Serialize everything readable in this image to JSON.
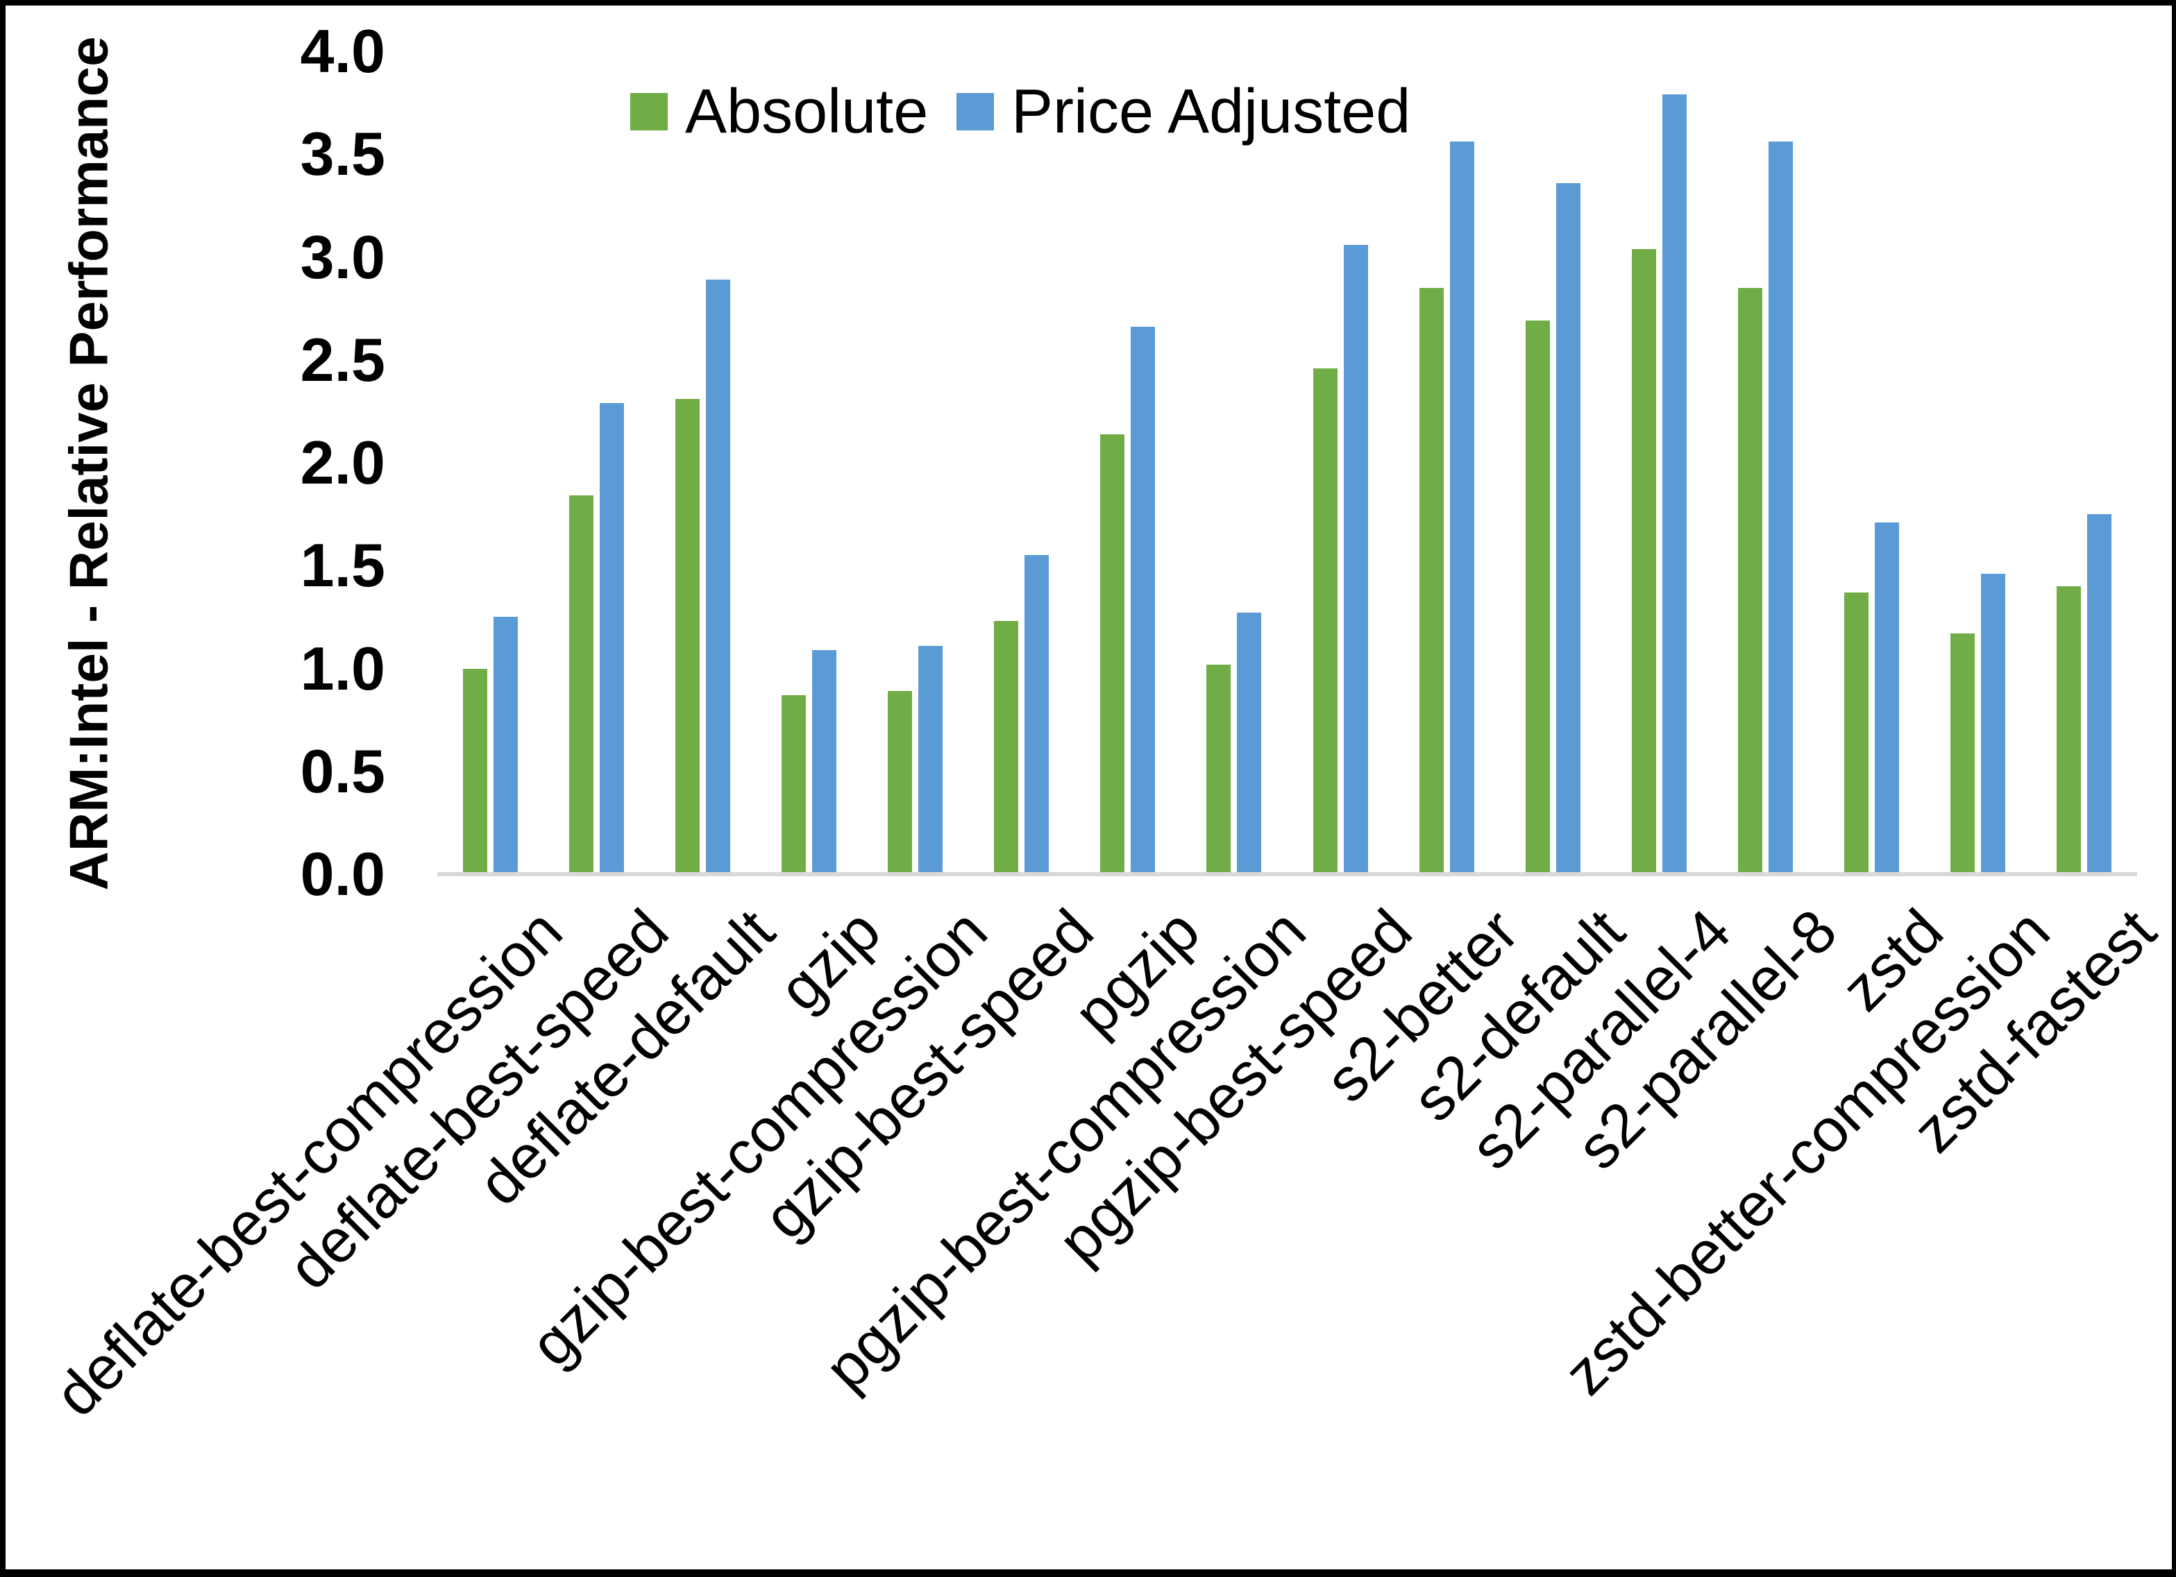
{
  "chart_data": {
    "type": "bar",
    "title": "",
    "xlabel": "",
    "ylabel": "ARM:Intel - Relative Performance",
    "ylim": [
      0.0,
      4.0
    ],
    "ytick_step": 0.5,
    "ytick_labels": [
      "0.0",
      "0.5",
      "1.0",
      "1.5",
      "2.0",
      "2.5",
      "3.0",
      "3.5",
      "4.0"
    ],
    "grid": false,
    "legend_position": "top-center",
    "axis_line_color": "#D9D9D9",
    "categories": [
      "deflate-best-compression",
      "deflate-best-speed",
      "deflate-default",
      "gzip",
      "gzip-best-compression",
      "gzip-best-speed",
      "pgzip",
      "pgzip-best-compression",
      "pgzip-best-speed",
      "s2-better",
      "s2-default",
      "s2-parallel-4",
      "s2-parallel-8",
      "zstd",
      "zstd-better-compression",
      "zstd-fastest"
    ],
    "series": [
      {
        "name": "Absolute",
        "color": "#70AD47",
        "values": [
          1.0,
          1.84,
          2.31,
          0.87,
          0.89,
          1.23,
          2.14,
          1.02,
          2.46,
          2.85,
          2.69,
          3.04,
          2.85,
          1.37,
          1.17,
          1.4
        ]
      },
      {
        "name": "Price Adjusted",
        "color": "#5B9BD5",
        "values": [
          1.25,
          2.29,
          2.89,
          1.09,
          1.11,
          1.55,
          2.66,
          1.27,
          3.06,
          3.56,
          3.36,
          3.79,
          3.56,
          1.71,
          1.46,
          1.75
        ]
      }
    ]
  }
}
